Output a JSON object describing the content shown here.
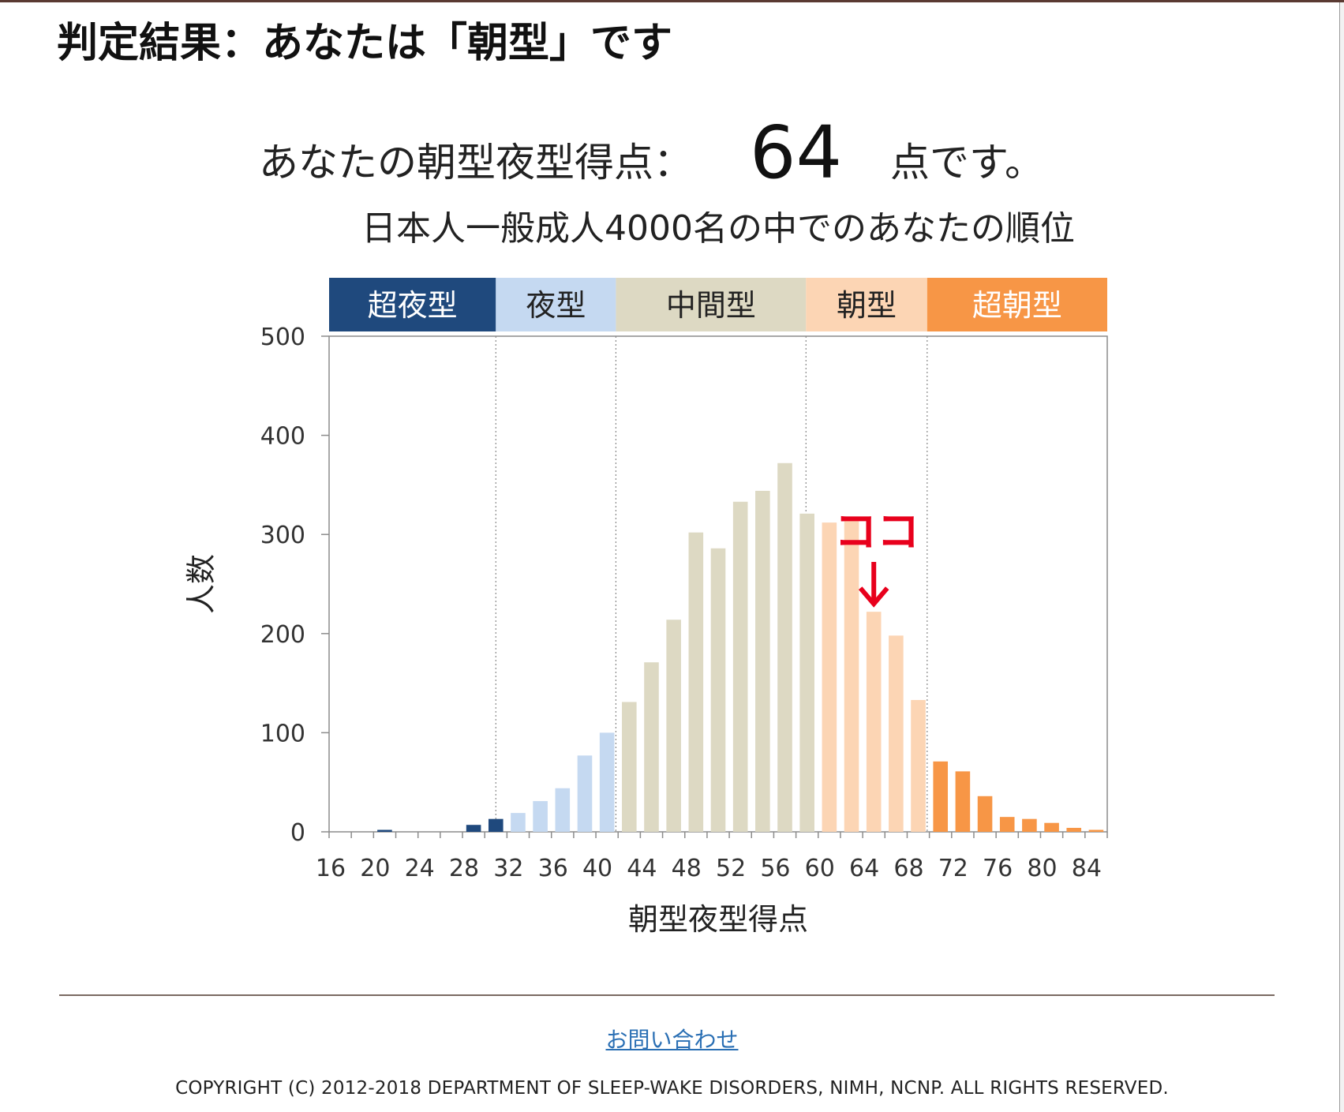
{
  "page": {
    "title": "判定結果：あなたは「朝型」です"
  },
  "score": {
    "label": "あなたの朝型夜型得点：",
    "value": "64",
    "suffix": "点です。"
  },
  "chart_data": {
    "type": "bar",
    "title": "日本人一般成人4000名の中でのあなたの順位",
    "xlabel": "朝型夜型得点",
    "ylabel": "人数",
    "ylim": [
      0,
      500
    ],
    "yticks": [
      0,
      100,
      200,
      300,
      400,
      500
    ],
    "xlim": [
      16,
      86
    ],
    "xticks": [
      16,
      20,
      24,
      28,
      32,
      36,
      40,
      44,
      48,
      52,
      56,
      60,
      64,
      68,
      72,
      76,
      80,
      84
    ],
    "grid": false,
    "bands": [
      {
        "label": "超夜型",
        "from": 16,
        "to": 31,
        "color": "#1f497d",
        "text_color": "#ffffff"
      },
      {
        "label": "夜型",
        "from": 31,
        "to": 41.8,
        "color": "#c5d9f1",
        "text_color": "#222222"
      },
      {
        "label": "中間型",
        "from": 41.8,
        "to": 58.9,
        "color": "#ddd9c3",
        "text_color": "#222222"
      },
      {
        "label": "朝型",
        "from": 58.9,
        "to": 69.8,
        "color": "#fcd5b4",
        "text_color": "#222222"
      },
      {
        "label": "超朝型",
        "from": 69.8,
        "to": 86,
        "color": "#f79646",
        "text_color": "#ffffff"
      }
    ],
    "x": [
      16,
      17,
      18,
      19,
      20,
      21,
      22,
      23,
      24,
      25,
      26,
      27,
      28,
      29,
      30,
      31,
      32,
      33,
      34,
      35,
      36,
      37,
      38,
      39,
      40,
      41,
      42,
      43,
      44,
      45,
      46,
      47,
      48,
      49,
      50,
      51,
      52,
      53,
      54,
      55,
      56,
      57,
      58,
      59,
      60,
      61,
      62,
      63,
      64,
      65,
      66,
      67,
      68,
      69,
      70,
      71,
      72,
      73,
      74,
      75,
      76,
      77,
      78,
      79,
      80,
      81,
      82,
      83,
      84,
      85
    ],
    "values": [
      0,
      0,
      0,
      0,
      2,
      0,
      0,
      0,
      0,
      0,
      0,
      0,
      7,
      0,
      13,
      0,
      19,
      0,
      31,
      0,
      44,
      0,
      77,
      0,
      100,
      0,
      131,
      0,
      171,
      0,
      214,
      0,
      302,
      0,
      286,
      0,
      333,
      0,
      344,
      0,
      372,
      0,
      321,
      0,
      312,
      0,
      316,
      0,
      222,
      0,
      198,
      0,
      133,
      0,
      71,
      0,
      61,
      0,
      36,
      0,
      15,
      0,
      13,
      0,
      9,
      0,
      4,
      0,
      2,
      0
    ],
    "highlight": {
      "x": 64,
      "label": "ココ",
      "color": "#e8001c"
    }
  },
  "footer": {
    "contact_label": "お問い合わせ",
    "copyright": "COPYRIGHT (C) 2012-2018 DEPARTMENT OF SLEEP-WAKE DISORDERS, NIMH, NCNP. ALL RIGHTS RESERVED."
  }
}
